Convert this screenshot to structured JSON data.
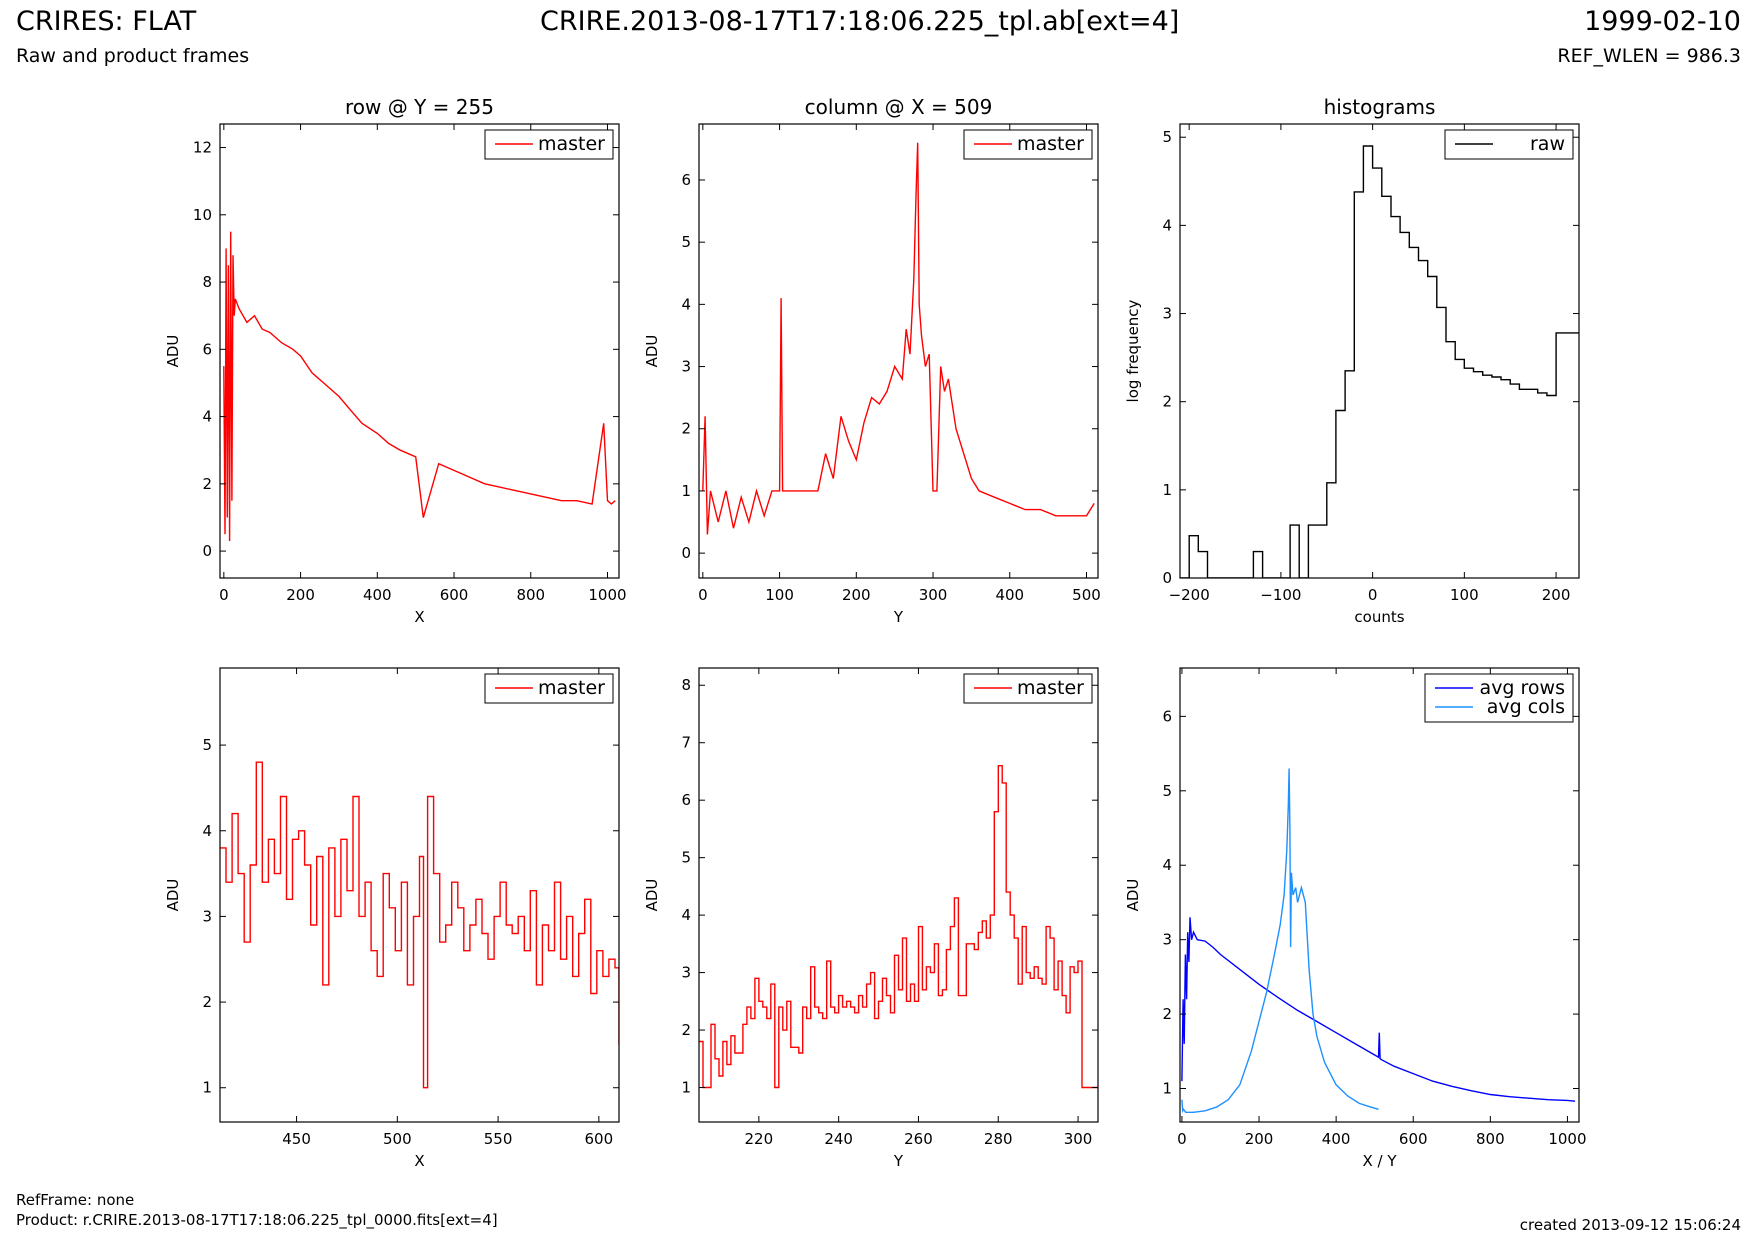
{
  "header": {
    "title": "CRIRES: FLAT",
    "subtitle": "Raw and product frames",
    "file_title": "CRIRE.2013-08-17T17:18:06.225_tpl.ab[ext=4]",
    "date": "1999-02-10",
    "ref_wlen": "REF_WLEN = 986.3"
  },
  "footer": {
    "ref_frame": "RefFrame: none",
    "product": "Product: r.CRIRE.2013-08-17T17:18:06.225_tpl_0000.fits[ext=4]",
    "created": "created 2013-09-12 15:06:24"
  },
  "colors": {
    "master": "#ff0000",
    "raw": "#000000",
    "avg_rows": "#0000ff",
    "avg_cols": "#1e90ff"
  },
  "chart_data": [
    {
      "id": "row",
      "type": "line",
      "title": "row @ Y = 255",
      "xlabel": "X",
      "ylabel": "ADU",
      "xlim": [
        -10,
        1030
      ],
      "ylim": [
        -0.8,
        12.7
      ],
      "xticks": [
        0,
        200,
        400,
        600,
        800,
        1000
      ],
      "yticks": [
        0,
        2,
        4,
        6,
        8,
        10,
        12
      ],
      "legend": "top-right",
      "series": [
        {
          "name": "master",
          "color": "#ff0000",
          "x": [
            0,
            3,
            6,
            9,
            12,
            15,
            18,
            21,
            24,
            27,
            30,
            40,
            60,
            80,
            100,
            120,
            150,
            180,
            200,
            230,
            260,
            300,
            330,
            360,
            400,
            430,
            460,
            500,
            520,
            560,
            600,
            640,
            680,
            720,
            760,
            800,
            840,
            880,
            920,
            960,
            990,
            1000,
            1010,
            1020
          ],
          "y": [
            5.5,
            0.5,
            9.0,
            1.0,
            8.5,
            0.3,
            9.5,
            1.5,
            8.8,
            7.0,
            7.5,
            7.2,
            6.8,
            7.0,
            6.6,
            6.5,
            6.2,
            6.0,
            5.8,
            5.3,
            5.0,
            4.6,
            4.2,
            3.8,
            3.5,
            3.2,
            3.0,
            2.8,
            1.0,
            2.6,
            2.4,
            2.2,
            2.0,
            1.9,
            1.8,
            1.7,
            1.6,
            1.5,
            1.5,
            1.4,
            3.8,
            1.5,
            1.4,
            1.5
          ]
        }
      ]
    },
    {
      "id": "column",
      "type": "line",
      "title": "column @ X = 509",
      "xlabel": "Y",
      "ylabel": "ADU",
      "xlim": [
        -5,
        515
      ],
      "ylim": [
        -0.4,
        6.9
      ],
      "xticks": [
        0,
        100,
        200,
        300,
        400,
        500
      ],
      "yticks": [
        0,
        1,
        2,
        3,
        4,
        5,
        6
      ],
      "legend": "top-right",
      "series": [
        {
          "name": "master",
          "color": "#ff0000",
          "x": [
            0,
            3,
            6,
            10,
            20,
            30,
            40,
            50,
            60,
            70,
            80,
            90,
            100,
            102,
            104,
            110,
            130,
            150,
            160,
            170,
            180,
            190,
            200,
            210,
            220,
            230,
            240,
            250,
            260,
            265,
            270,
            275,
            278,
            280,
            282,
            285,
            290,
            295,
            300,
            305,
            310,
            315,
            320,
            325,
            330,
            340,
            350,
            360,
            380,
            400,
            420,
            440,
            460,
            480,
            500,
            510
          ],
          "y": [
            1.0,
            2.2,
            0.3,
            1.0,
            0.5,
            1.0,
            0.4,
            0.9,
            0.5,
            1.0,
            0.6,
            1.0,
            1.0,
            4.1,
            1.0,
            1.0,
            1.0,
            1.0,
            1.6,
            1.2,
            2.2,
            1.8,
            1.5,
            2.1,
            2.5,
            2.4,
            2.6,
            3.0,
            2.8,
            3.6,
            3.2,
            4.4,
            5.8,
            6.6,
            4.0,
            3.5,
            3.0,
            3.2,
            1.0,
            1.0,
            3.0,
            2.6,
            2.8,
            2.4,
            2.0,
            1.6,
            1.2,
            1.0,
            0.9,
            0.8,
            0.7,
            0.7,
            0.6,
            0.6,
            0.6,
            0.8
          ]
        }
      ]
    },
    {
      "id": "hist",
      "type": "step",
      "title": "histograms",
      "xlabel": "counts",
      "ylabel": "log frequency",
      "xlim": [
        -210,
        225
      ],
      "ylim": [
        0,
        5.15
      ],
      "xticks": [
        -200,
        -100,
        0,
        100,
        200
      ],
      "yticks": [
        0,
        1,
        2,
        3,
        4,
        5
      ],
      "legend": "top-right",
      "series": [
        {
          "name": "raw",
          "color": "#000000",
          "edges": [
            -210,
            -200,
            -190,
            -180,
            -170,
            -160,
            -150,
            -140,
            -130,
            -120,
            -110,
            -100,
            -90,
            -80,
            -70,
            -60,
            -50,
            -40,
            -30,
            -20,
            -10,
            0,
            10,
            20,
            30,
            40,
            50,
            60,
            70,
            80,
            90,
            100,
            110,
            120,
            130,
            140,
            150,
            160,
            170,
            180,
            190,
            200,
            210,
            225
          ],
          "values": [
            0,
            0.48,
            0.3,
            0,
            0,
            0,
            0,
            0,
            0.3,
            0,
            0,
            0,
            0.6,
            0,
            0.6,
            0.6,
            1.08,
            1.9,
            2.35,
            4.38,
            4.9,
            4.65,
            4.33,
            4.1,
            3.92,
            3.75,
            3.6,
            3.42,
            3.07,
            2.68,
            2.48,
            2.38,
            2.34,
            2.3,
            2.28,
            2.25,
            2.2,
            2.14,
            2.14,
            2.1,
            2.07,
            2.78,
            2.78
          ]
        }
      ]
    },
    {
      "id": "row_zoom",
      "type": "step",
      "title": "",
      "xlabel": "X",
      "ylabel": "ADU",
      "xlim": [
        412,
        610
      ],
      "ylim": [
        0.6,
        5.9
      ],
      "xticks": [
        450,
        500,
        550,
        600
      ],
      "yticks": [
        1,
        2,
        3,
        4,
        5
      ],
      "legend": "top-right",
      "series": [
        {
          "name": "master",
          "color": "#ff0000",
          "x": [
            412,
            415,
            418,
            421,
            424,
            427,
            430,
            433,
            436,
            439,
            442,
            445,
            448,
            451,
            454,
            457,
            460,
            463,
            466,
            469,
            472,
            475,
            478,
            481,
            484,
            487,
            490,
            493,
            496,
            499,
            502,
            505,
            508,
            511,
            513,
            515,
            518,
            521,
            524,
            527,
            530,
            533,
            536,
            539,
            542,
            545,
            548,
            551,
            554,
            557,
            560,
            563,
            566,
            569,
            572,
            575,
            578,
            581,
            584,
            587,
            590,
            593,
            596,
            599,
            602,
            605,
            608,
            610
          ],
          "y": [
            3.8,
            3.4,
            4.2,
            3.5,
            2.7,
            3.6,
            4.8,
            3.4,
            3.9,
            3.5,
            4.4,
            3.2,
            3.9,
            4.0,
            3.6,
            2.9,
            3.7,
            2.2,
            3.8,
            3.0,
            3.9,
            3.3,
            4.4,
            3.0,
            3.4,
            2.6,
            2.3,
            3.5,
            3.1,
            2.6,
            3.4,
            2.2,
            3.0,
            3.7,
            1.0,
            4.4,
            3.5,
            2.7,
            2.9,
            3.4,
            3.1,
            2.6,
            2.9,
            3.2,
            2.8,
            2.5,
            3.0,
            3.4,
            2.9,
            2.8,
            3.0,
            2.6,
            3.3,
            2.2,
            2.9,
            2.6,
            3.4,
            2.5,
            3.0,
            2.3,
            2.8,
            3.2,
            2.1,
            2.6,
            2.3,
            2.5,
            2.4,
            1.5
          ]
        }
      ]
    },
    {
      "id": "col_zoom",
      "type": "step",
      "title": "",
      "xlabel": "Y",
      "ylabel": "ADU",
      "xlim": [
        205,
        305
      ],
      "ylim": [
        0.4,
        8.3
      ],
      "xticks": [
        220,
        240,
        260,
        280,
        300
      ],
      "yticks": [
        1,
        2,
        3,
        4,
        5,
        6,
        7,
        8
      ],
      "legend": "top-right",
      "series": [
        {
          "name": "master",
          "color": "#ff0000",
          "x": [
            205,
            206,
            207,
            208,
            209,
            210,
            211,
            212,
            213,
            214,
            215,
            216,
            217,
            218,
            219,
            220,
            221,
            222,
            223,
            224,
            225,
            226,
            227,
            228,
            229,
            230,
            231,
            232,
            233,
            234,
            235,
            236,
            237,
            238,
            239,
            240,
            241,
            242,
            243,
            244,
            245,
            246,
            247,
            248,
            249,
            250,
            251,
            252,
            253,
            254,
            255,
            256,
            257,
            258,
            259,
            260,
            261,
            262,
            263,
            264,
            265,
            266,
            267,
            268,
            269,
            270,
            271,
            272,
            273,
            274,
            275,
            276,
            277,
            278,
            279,
            280,
            281,
            282,
            283,
            284,
            285,
            286,
            287,
            288,
            289,
            290,
            291,
            292,
            293,
            294,
            295,
            296,
            297,
            298,
            299,
            300,
            301,
            302,
            303,
            304,
            305
          ],
          "y": [
            1.8,
            1.0,
            1.0,
            2.1,
            1.5,
            1.2,
            1.8,
            1.4,
            1.9,
            1.6,
            1.6,
            2.1,
            2.4,
            2.2,
            2.9,
            2.5,
            2.4,
            2.2,
            2.8,
            1.0,
            2.4,
            2.0,
            2.5,
            1.7,
            1.7,
            1.6,
            2.4,
            2.2,
            3.1,
            2.4,
            2.3,
            2.2,
            3.2,
            2.4,
            2.3,
            2.6,
            2.4,
            2.5,
            2.4,
            2.3,
            2.6,
            2.4,
            2.8,
            3.0,
            2.2,
            2.5,
            2.9,
            2.6,
            2.3,
            3.3,
            2.7,
            3.6,
            2.5,
            2.8,
            2.5,
            3.8,
            2.7,
            3.1,
            3.0,
            3.5,
            2.6,
            2.7,
            3.4,
            3.8,
            4.3,
            2.6,
            2.6,
            3.5,
            3.5,
            3.4,
            3.7,
            3.9,
            3.6,
            4.0,
            5.8,
            6.6,
            6.3,
            4.4,
            4.0,
            3.6,
            2.8,
            3.8,
            3.0,
            2.9,
            3.1,
            2.9,
            2.8,
            3.8,
            3.6,
            2.7,
            3.2,
            2.6,
            2.3,
            3.1,
            3.0,
            3.2,
            1.0,
            1.0,
            1.0,
            1.0,
            1.0
          ]
        }
      ]
    },
    {
      "id": "avg",
      "type": "line",
      "title": "",
      "xlabel": "X / Y",
      "ylabel": "ADU",
      "xlim": [
        -5,
        1030
      ],
      "ylim": [
        0.55,
        6.65
      ],
      "xticks": [
        0,
        200,
        400,
        600,
        800,
        1000
      ],
      "yticks": [
        1,
        2,
        3,
        4,
        5,
        6
      ],
      "legend": "top-right",
      "series": [
        {
          "name": "avg rows",
          "color": "#0000ff",
          "x": [
            0,
            3,
            6,
            9,
            12,
            15,
            18,
            21,
            25,
            30,
            40,
            60,
            80,
            100,
            150,
            200,
            250,
            300,
            350,
            400,
            450,
            500,
            510,
            512,
            514,
            520,
            550,
            600,
            650,
            700,
            750,
            800,
            850,
            900,
            950,
            1000,
            1020
          ],
          "y": [
            1.1,
            2.2,
            1.6,
            2.8,
            2.2,
            3.1,
            2.7,
            3.3,
            3.0,
            3.1,
            3.0,
            2.98,
            2.9,
            2.8,
            2.6,
            2.4,
            2.22,
            2.05,
            1.9,
            1.75,
            1.6,
            1.45,
            1.42,
            1.75,
            1.4,
            1.38,
            1.3,
            1.2,
            1.1,
            1.03,
            0.97,
            0.92,
            0.89,
            0.87,
            0.85,
            0.84,
            0.83
          ]
        },
        {
          "name": "avg cols",
          "color": "#1e90ff",
          "x": [
            0,
            2,
            4,
            10,
            30,
            60,
            90,
            120,
            150,
            180,
            200,
            220,
            240,
            255,
            265,
            272,
            276,
            278,
            280,
            282,
            284,
            288,
            295,
            300,
            310,
            320,
            330,
            340,
            350,
            370,
            400,
            430,
            460,
            490,
            510
          ],
          "y": [
            0.85,
            0.7,
            0.72,
            0.68,
            0.68,
            0.7,
            0.75,
            0.85,
            1.05,
            1.5,
            1.9,
            2.3,
            2.8,
            3.2,
            3.6,
            4.2,
            4.8,
            5.3,
            4.5,
            2.9,
            3.9,
            3.6,
            3.7,
            3.5,
            3.7,
            3.5,
            2.6,
            2.0,
            1.7,
            1.35,
            1.05,
            0.9,
            0.8,
            0.75,
            0.72
          ]
        }
      ]
    }
  ]
}
